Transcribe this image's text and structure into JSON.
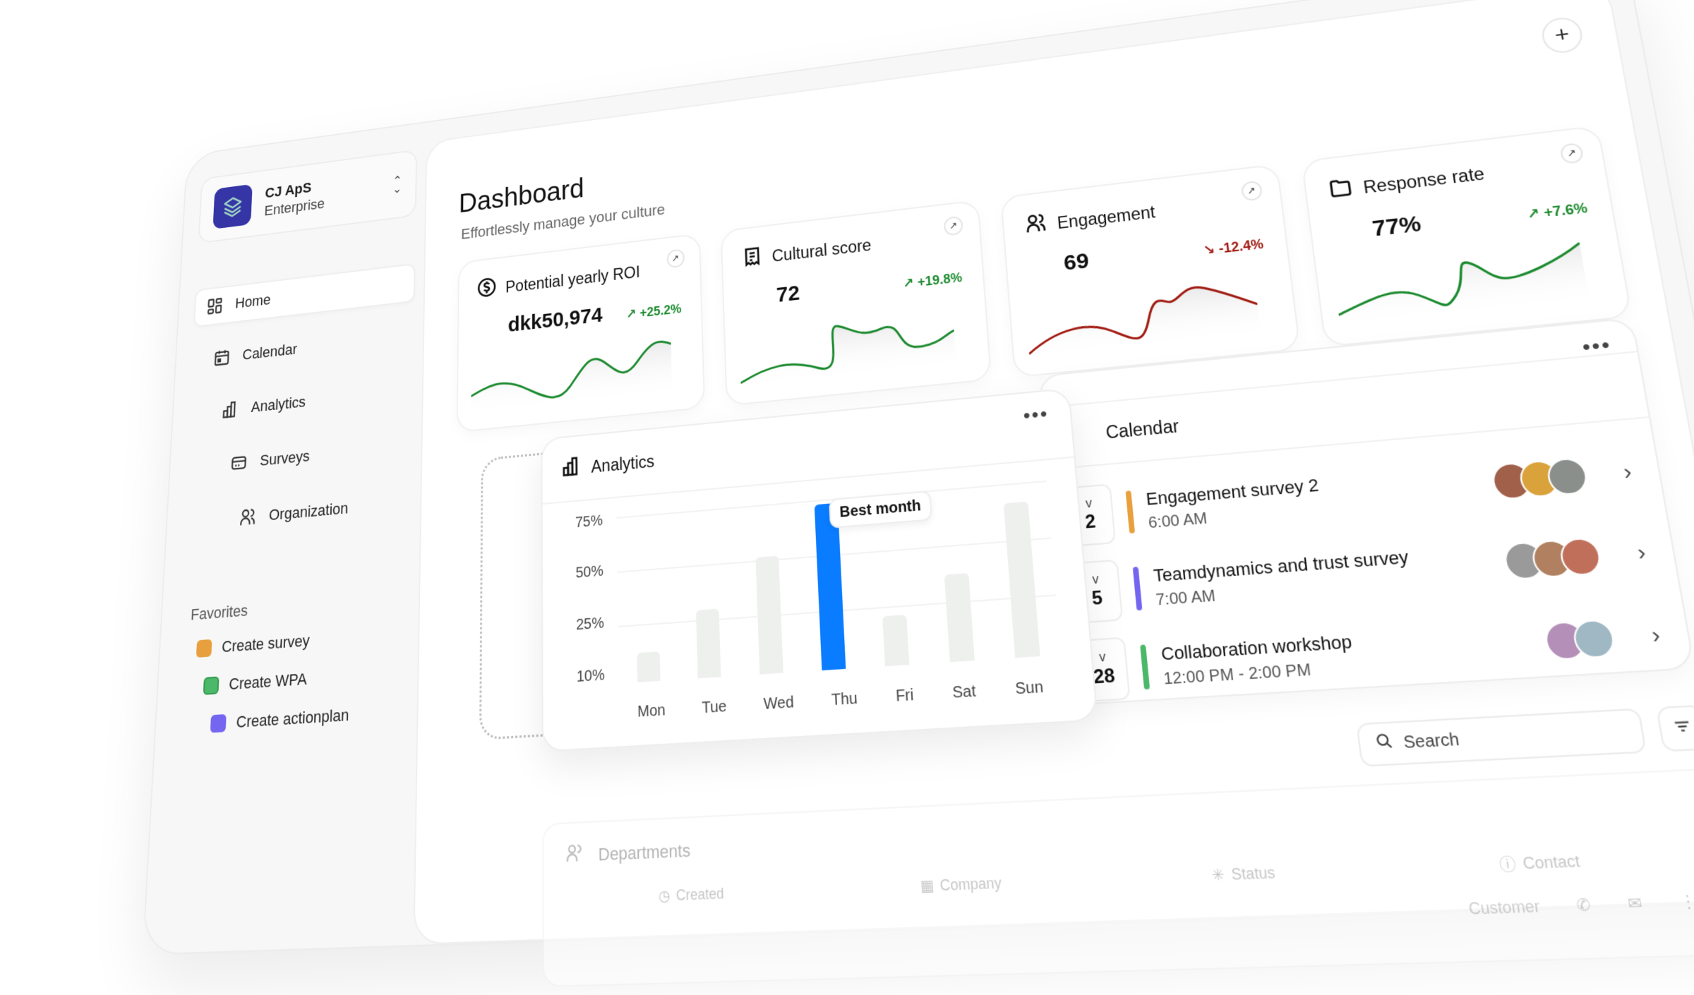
{
  "org": {
    "name": "CJ ApS",
    "plan": "Enterprise"
  },
  "sidebar": {
    "items": [
      {
        "label": "Home",
        "icon": "dashboard-icon",
        "active": true
      },
      {
        "label": "Calendar",
        "icon": "calendar-icon"
      },
      {
        "label": "Analytics",
        "icon": "bar-chart-icon"
      },
      {
        "label": "Surveys",
        "icon": "card-icon"
      },
      {
        "label": "Organization",
        "icon": "users-icon"
      }
    ],
    "favorites_title": "Favorites",
    "favorites": [
      {
        "label": "Create survey",
        "color": "#e8a03e"
      },
      {
        "label": "Create WPA",
        "color": "#4cb86a"
      },
      {
        "label": "Create actionplan",
        "color": "#7466f0"
      }
    ]
  },
  "header": {
    "title": "Dashboard",
    "subtitle": "Effortlessly manage your culture",
    "add_label": "+"
  },
  "kpis": [
    {
      "title": "Potential yearly ROI",
      "icon": "dollar-circle-icon",
      "value": "dkk50,974",
      "delta": "+25.2%",
      "trend": "up",
      "color": "#1b8a2e"
    },
    {
      "title": "Cultural score",
      "icon": "receipt-icon",
      "value": "72",
      "delta": "+19.8%",
      "trend": "up",
      "color": "#1b8a2e"
    },
    {
      "title": "Engagement",
      "icon": "users-icon",
      "value": "69",
      "delta": "-12.4%",
      "trend": "down",
      "color": "#a11b12"
    },
    {
      "title": "Response rate",
      "icon": "folder-icon",
      "value": "77%",
      "delta": "+7.6%",
      "trend": "up",
      "color": "#1b8a2e"
    }
  ],
  "analytics": {
    "title": "Analytics",
    "more": "•••",
    "tooltip": "Best month",
    "highlight_color": "#0a7cff"
  },
  "chart_data": {
    "type": "bar",
    "title": "Analytics",
    "categories": [
      "Mon",
      "Tue",
      "Wed",
      "Thu",
      "Fri",
      "Sat",
      "Sun"
    ],
    "values": [
      22,
      38,
      58,
      78,
      30,
      45,
      72
    ],
    "highlight": "Thu",
    "annotation": "Best month",
    "yticks": [
      "75%",
      "50%",
      "25%",
      "10%"
    ],
    "ylim": [
      10,
      80
    ],
    "grid": true
  },
  "calendar": {
    "title": "Calendar",
    "more": "•••",
    "events": [
      {
        "month": "v",
        "day": "2",
        "title": "Engagement survey 2",
        "time": "6:00 AM",
        "color": "#e8a03e",
        "avatars": [
          "#a0604a",
          "#d9a23a",
          "#8a8f8c"
        ]
      },
      {
        "month": "v",
        "day": "5",
        "title": "Teamdynamics and trust survey",
        "time": "7:00 AM",
        "color": "#7466f0",
        "avatars": [
          "#9a9a9a",
          "#b08060",
          "#c0705a"
        ]
      },
      {
        "month": "v",
        "day": "28",
        "title": "Collaboration workshop",
        "time": "12:00 PM - 2:00 PM",
        "color": "#4cb86a",
        "avatars": [
          "#b48fb8",
          "#9fb8c4"
        ]
      }
    ]
  },
  "table": {
    "search_placeholder": "Search",
    "title": "Departments",
    "columns": [
      "Created",
      "Company",
      "Status",
      "Contact"
    ],
    "row_status": "Customer"
  }
}
